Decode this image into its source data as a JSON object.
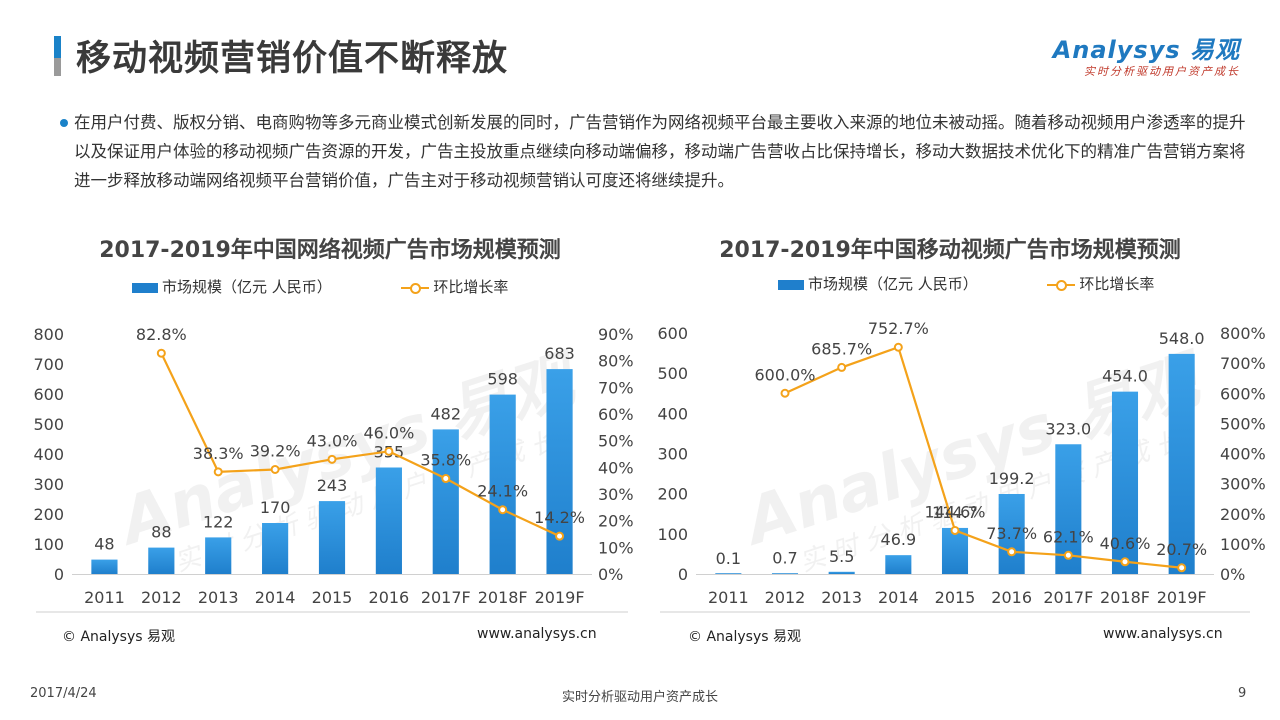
{
  "header": {
    "title": "移动视频营销价值不断释放",
    "logo_main": "Analysys 易观",
    "logo_sub": "实时分析驱动用户资产成长"
  },
  "description": "在用户付费、版权分销、电商购物等多元商业模式创新发展的同时，广告营销作为网络视频平台最主要收入来源的地位未被动摇。随着移动视频用户渗透率的提升以及保证用户体验的移动视频广告资源的开发，广告主投放重点继续向移动端偏移，移动端广告营收占比保持增长，移动大数据技术优化下的精准广告营销方案将进一步释放移动端网络视频平台营销价值，广告主对于移动视频营销认可度还将继续提升。",
  "watermark": {
    "main": "Analysys 易观",
    "sub": "实时分析驱动用户资产成长"
  },
  "chart_data": [
    {
      "type": "bar",
      "title": "2017-2019年中国网络视频广告市场规模预测",
      "categories": [
        "2011",
        "2012",
        "2013",
        "2014",
        "2015",
        "2016",
        "2017F",
        "2018F",
        "2019F"
      ],
      "series": [
        {
          "name": "市场规模（亿元 人民币）",
          "type": "bar",
          "axis": "left",
          "values": [
            48,
            88,
            122,
            170,
            243,
            355,
            482,
            598,
            683
          ],
          "labels": [
            "48",
            "88",
            "122",
            "170",
            "243",
            "355",
            "482",
            "598",
            "683"
          ]
        },
        {
          "name": "环比增长率",
          "type": "line",
          "axis": "right",
          "values": [
            null,
            82.8,
            38.3,
            39.2,
            43.0,
            46.0,
            35.8,
            24.1,
            14.2
          ],
          "labels": [
            "",
            "82.8%",
            "38.3%",
            "39.2%",
            "43.0%",
            "46.0%",
            "35.8%",
            "24.1%",
            "14.2%"
          ]
        }
      ],
      "y_left": {
        "min": 0,
        "max": 800,
        "step": 100,
        "ticks": [
          "0",
          "100",
          "200",
          "300",
          "400",
          "500",
          "600",
          "700",
          "800"
        ]
      },
      "y_right": {
        "min": 0,
        "max": 90,
        "step": 10,
        "ticks": [
          "0%",
          "10%",
          "20%",
          "30%",
          "40%",
          "50%",
          "60%",
          "70%",
          "80%",
          "90%"
        ]
      },
      "legend_position": "top",
      "grid": false,
      "copyright": "© Analysys 易观",
      "site": "www.analysys.cn"
    },
    {
      "type": "bar",
      "title": "2017-2019年中国移动视频广告市场规模预测",
      "categories": [
        "2011",
        "2012",
        "2013",
        "2014",
        "2015",
        "2016",
        "2017F",
        "2018F",
        "2019F"
      ],
      "series": [
        {
          "name": "市场规模（亿元 人民币）",
          "type": "bar",
          "axis": "left",
          "values": [
            0.1,
            0.7,
            5.5,
            46.9,
            114.7,
            199.2,
            323.0,
            454.0,
            548.0
          ],
          "labels": [
            "0.1",
            "0.7",
            "5.5",
            "46.9",
            "114.7",
            "199.2",
            "323.0",
            "454.0",
            "548.0"
          ]
        },
        {
          "name": "环比增长率",
          "type": "line",
          "axis": "right",
          "values": [
            null,
            600.0,
            685.7,
            752.7,
            144.6,
            73.7,
            62.1,
            40.6,
            20.7
          ],
          "labels": [
            "",
            "600.0%",
            "685.7%",
            "752.7%",
            "144.6%",
            "73.7%",
            "62.1%",
            "40.6%",
            "20.7%"
          ]
        }
      ],
      "y_left": {
        "min": 0,
        "max": 600,
        "step": 100,
        "ticks": [
          "0",
          "100",
          "200",
          "300",
          "400",
          "500",
          "600"
        ]
      },
      "y_right": {
        "min": 0,
        "max": 800,
        "step": 100,
        "ticks": [
          "0%",
          "100%",
          "200%",
          "300%",
          "400%",
          "500%",
          "600%",
          "700%",
          "800%"
        ]
      },
      "legend_position": "top",
      "grid": false,
      "copyright": "© Analysys 易观",
      "site": "www.analysys.cn"
    }
  ],
  "footer": {
    "date": "2017/4/24",
    "slogan": "实时分析驱动用户资产成长",
    "page": "9"
  },
  "colors": {
    "bar": "#1f7fcc",
    "bar_light": "#3aa0e8",
    "line": "#f4a21a",
    "accent": "#1a82c8"
  }
}
